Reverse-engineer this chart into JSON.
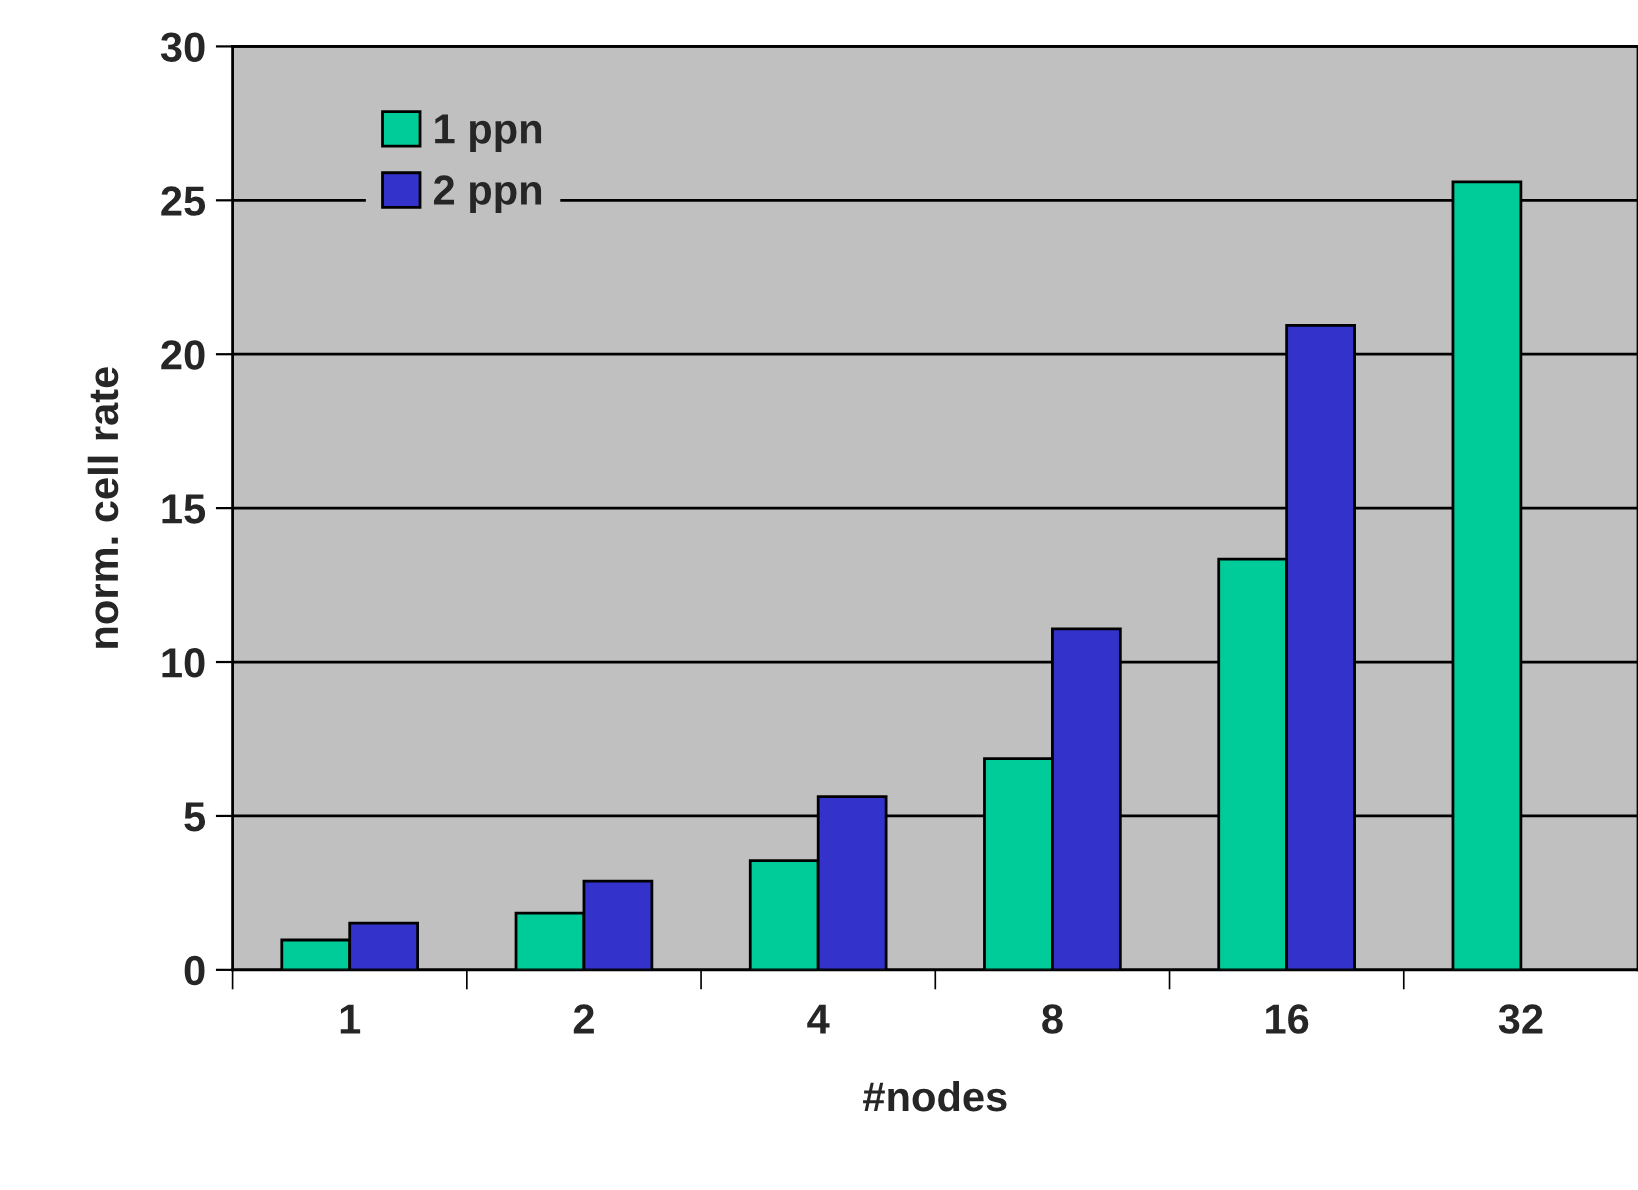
{
  "chart_data": {
    "type": "bar",
    "xlabel": "#nodes",
    "ylabel": "norm. cell rate",
    "categories": [
      "1",
      "2",
      "4",
      "8",
      "16",
      "32"
    ],
    "series": [
      {
        "name": "1 ppn",
        "color": "#00cc99",
        "values": [
          0.97,
          1.84,
          3.55,
          6.86,
          13.34,
          25.6
        ]
      },
      {
        "name": "2 ppn",
        "color": "#3333cc",
        "values": [
          1.52,
          2.88,
          5.63,
          11.08,
          20.94,
          null
        ]
      }
    ],
    "ylim": [
      0,
      30
    ],
    "yticks": [
      0,
      5,
      10,
      15,
      20,
      25,
      30
    ],
    "grid": "y",
    "legend": "top left"
  }
}
